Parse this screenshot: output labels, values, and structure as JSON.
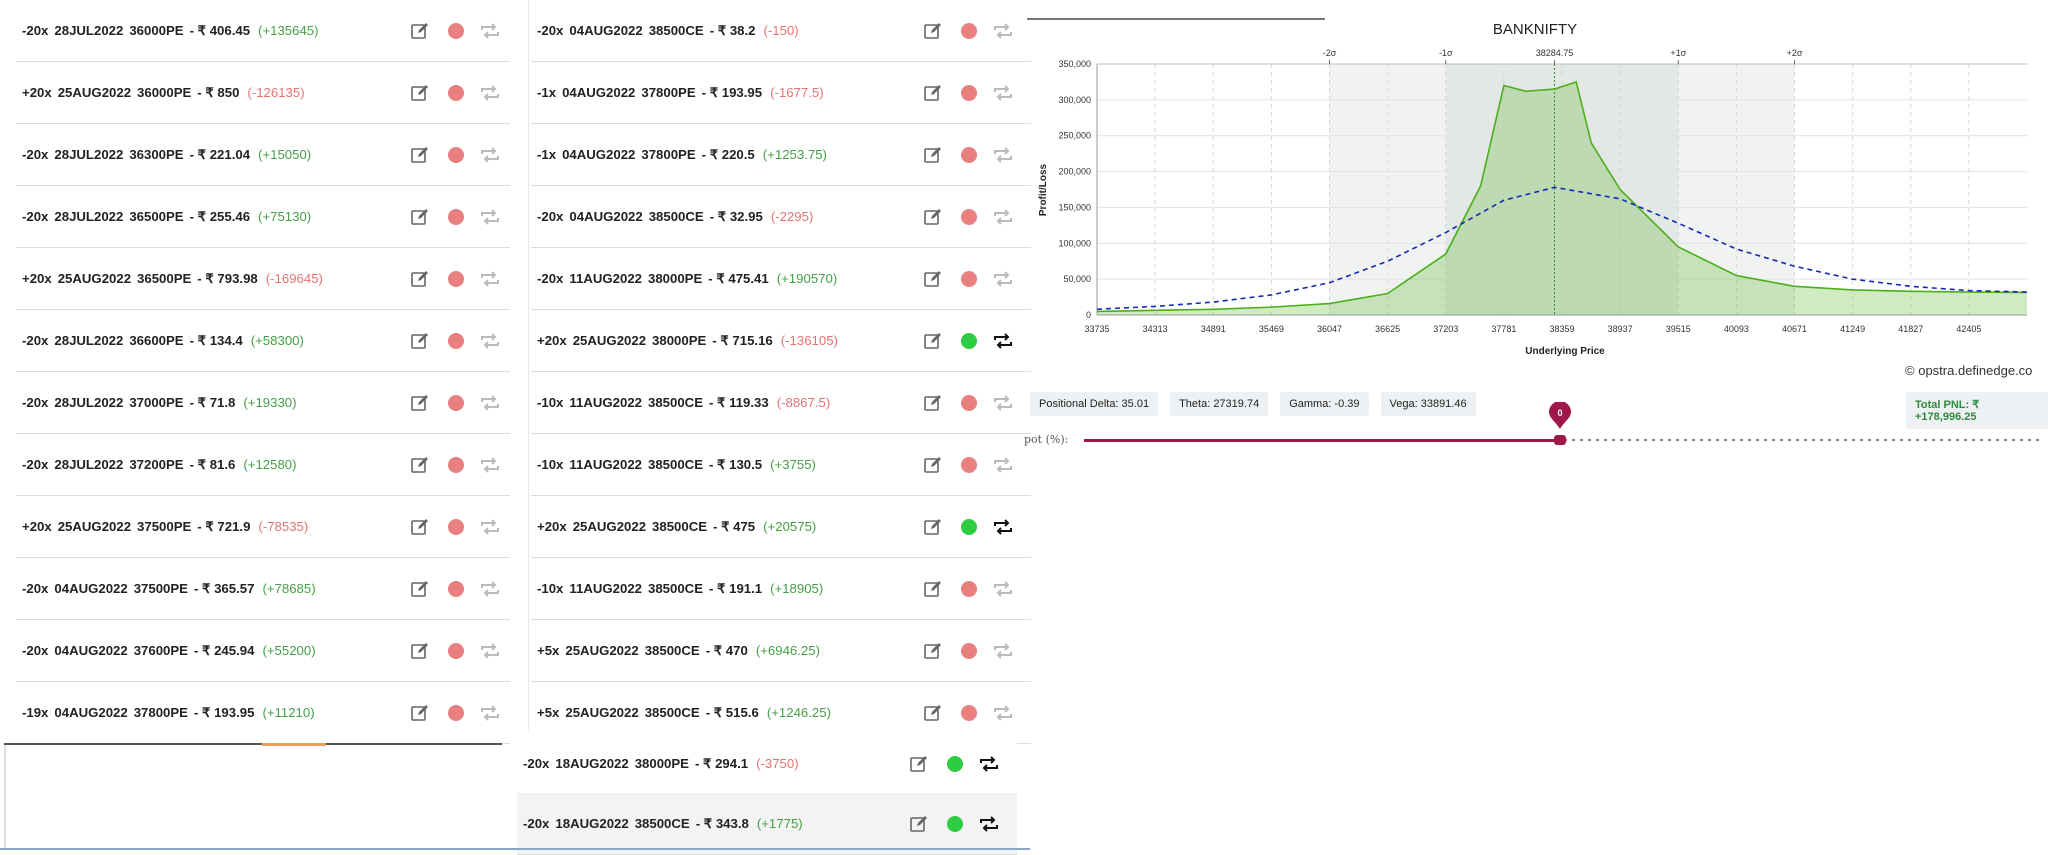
{
  "left_rows": [
    {
      "qty": "-20x",
      "expiry": "28JUL2022",
      "strike": "36000PE",
      "price": "- ₹ 406.45",
      "pnl": "(+135645)",
      "pnl_positive": true,
      "active": false
    },
    {
      "qty": "+20x",
      "expiry": "25AUG2022",
      "strike": "36000PE",
      "price": "- ₹ 850",
      "pnl": "(-126135)",
      "pnl_positive": false,
      "active": false
    },
    {
      "qty": "-20x",
      "expiry": "28JUL2022",
      "strike": "36300PE",
      "price": "- ₹ 221.04",
      "pnl": "(+15050)",
      "pnl_positive": true,
      "active": false
    },
    {
      "qty": "-20x",
      "expiry": "28JUL2022",
      "strike": "36500PE",
      "price": "- ₹ 255.46",
      "pnl": "(+75130)",
      "pnl_positive": true,
      "active": false
    },
    {
      "qty": "+20x",
      "expiry": "25AUG2022",
      "strike": "36500PE",
      "price": "- ₹ 793.98",
      "pnl": "(-169645)",
      "pnl_positive": false,
      "active": false
    },
    {
      "qty": "-20x",
      "expiry": "28JUL2022",
      "strike": "36600PE",
      "price": "- ₹ 134.4",
      "pnl": "(+58300)",
      "pnl_positive": true,
      "active": false
    },
    {
      "qty": "-20x",
      "expiry": "28JUL2022",
      "strike": "37000PE",
      "price": "- ₹ 71.8",
      "pnl": "(+19330)",
      "pnl_positive": true,
      "active": false
    },
    {
      "qty": "-20x",
      "expiry": "28JUL2022",
      "strike": "37200PE",
      "price": "- ₹ 81.6",
      "pnl": "(+12580)",
      "pnl_positive": true,
      "active": false
    },
    {
      "qty": "+20x",
      "expiry": "25AUG2022",
      "strike": "37500PE",
      "price": "- ₹ 721.9",
      "pnl": "(-78535)",
      "pnl_positive": false,
      "active": false
    },
    {
      "qty": "-20x",
      "expiry": "04AUG2022",
      "strike": "37500PE",
      "price": "- ₹ 365.57",
      "pnl": "(+78685)",
      "pnl_positive": true,
      "active": false
    },
    {
      "qty": "-20x",
      "expiry": "04AUG2022",
      "strike": "37600PE",
      "price": "- ₹ 245.94",
      "pnl": "(+55200)",
      "pnl_positive": true,
      "active": false
    },
    {
      "qty": "-19x",
      "expiry": "04AUG2022",
      "strike": "37800PE",
      "price": "- ₹ 193.95",
      "pnl": "(+11210)",
      "pnl_positive": true,
      "active": false
    }
  ],
  "mid_rows": [
    {
      "qty": "-20x",
      "expiry": "04AUG2022",
      "strike": "38500CE",
      "price": "- ₹ 38.2",
      "pnl": "(-150)",
      "pnl_positive": false,
      "active": false
    },
    {
      "qty": "-1x",
      "expiry": "04AUG2022",
      "strike": "37800PE",
      "price": "- ₹ 193.95",
      "pnl": "(-1677.5)",
      "pnl_positive": false,
      "active": false
    },
    {
      "qty": "-1x",
      "expiry": "04AUG2022",
      "strike": "37800PE",
      "price": "- ₹ 220.5",
      "pnl": "(+1253.75)",
      "pnl_positive": true,
      "active": false
    },
    {
      "qty": "-20x",
      "expiry": "04AUG2022",
      "strike": "38500CE",
      "price": "- ₹ 32.95",
      "pnl": "(-2295)",
      "pnl_positive": false,
      "active": false
    },
    {
      "qty": "-20x",
      "expiry": "11AUG2022",
      "strike": "38000PE",
      "price": "- ₹ 475.41",
      "pnl": "(+190570)",
      "pnl_positive": true,
      "active": false
    },
    {
      "qty": "+20x",
      "expiry": "25AUG2022",
      "strike": "38000PE",
      "price": "- ₹ 715.16",
      "pnl": "(-136105)",
      "pnl_positive": false,
      "active": true
    },
    {
      "qty": "-10x",
      "expiry": "11AUG2022",
      "strike": "38500CE",
      "price": "- ₹ 119.33",
      "pnl": "(-8867.5)",
      "pnl_positive": false,
      "active": false
    },
    {
      "qty": "-10x",
      "expiry": "11AUG2022",
      "strike": "38500CE",
      "price": "- ₹ 130.5",
      "pnl": "(+3755)",
      "pnl_positive": true,
      "active": false
    },
    {
      "qty": "+20x",
      "expiry": "25AUG2022",
      "strike": "38500CE",
      "price": "- ₹ 475",
      "pnl": "(+20575)",
      "pnl_positive": true,
      "active": true
    },
    {
      "qty": "-10x",
      "expiry": "11AUG2022",
      "strike": "38500CE",
      "price": "- ₹ 191.1",
      "pnl": "(+18905)",
      "pnl_positive": true,
      "active": false
    },
    {
      "qty": "+5x",
      "expiry": "25AUG2022",
      "strike": "38500CE",
      "price": "- ₹ 470",
      "pnl": "(+6946.25)",
      "pnl_positive": true,
      "active": false
    },
    {
      "qty": "+5x",
      "expiry": "25AUG2022",
      "strike": "38500CE",
      "price": "- ₹ 515.6",
      "pnl": "(+1246.25)",
      "pnl_positive": true,
      "active": false
    },
    {
      "qty": "-20x",
      "expiry": "18AUG2022",
      "strike": "38000PE",
      "price": "- ₹ 294.1",
      "pnl": "(-3750)",
      "pnl_positive": false,
      "active": true
    },
    {
      "qty": "-20x",
      "expiry": "18AUG2022",
      "strike": "38500CE",
      "price": "- ₹ 343.8",
      "pnl": "(+1775)",
      "pnl_positive": true,
      "active": true
    }
  ],
  "chart": {
    "title": "BANKNIFTY",
    "xlabel": "Underlying Price",
    "ylabel": "Profit/Loss",
    "credit": "opstra.definedge.co",
    "sigma_labels": [
      "-2σ",
      "-1σ",
      "38284.75",
      "+1σ",
      "+2σ"
    ],
    "x_ticks": [
      "33735",
      "34313",
      "34891",
      "35469",
      "36047",
      "36625",
      "37203",
      "37781",
      "38359",
      "38937",
      "39515",
      "40093",
      "40671",
      "41249",
      "41827",
      "42405"
    ],
    "y_ticks": [
      "0",
      "50,000",
      "100,000",
      "150,000",
      "200,000",
      "250,000",
      "300,000",
      "350,000"
    ]
  },
  "chart_data": {
    "type": "line",
    "title": "BANKNIFTY",
    "xlabel": "Underlying Price",
    "ylabel": "Profit/Loss",
    "xlim": [
      33735,
      42983
    ],
    "ylim": [
      0,
      350000
    ],
    "spot": 38284.75,
    "sigma": {
      "-2σ": 36047,
      "-1σ": 37203,
      "+1σ": 39515,
      "+2σ": 40671
    },
    "series": [
      {
        "color": "#4caf1a",
        "x": [
          33735,
          34313,
          34891,
          35469,
          36047,
          36625,
          37203,
          37550,
          37781,
          38000,
          38284.75,
          38500,
          38650,
          38937,
          39515,
          40093,
          40671,
          41249,
          41827,
          42405,
          42983
        ],
        "y": [
          5000,
          6500,
          8000,
          11000,
          16000,
          30000,
          85000,
          180000,
          320000,
          312000,
          315000,
          325000,
          240000,
          175000,
          95000,
          55000,
          40000,
          35000,
          33000,
          32000,
          31500
        ]
      },
      {
        "color": "#1428b4",
        "style": "dashed",
        "x": [
          33735,
          34313,
          34891,
          35469,
          36047,
          36625,
          37203,
          37781,
          38284.75,
          38937,
          39515,
          40093,
          40671,
          41249,
          41827,
          42405,
          42983
        ],
        "y": [
          8000,
          12000,
          18000,
          28000,
          45000,
          75000,
          115000,
          160000,
          178000,
          162000,
          128000,
          92000,
          68000,
          50000,
          40000,
          34000,
          32000
        ]
      }
    ]
  },
  "greeks": {
    "delta": "Positional Delta: 35.01",
    "theta": "Theta: 27319.74",
    "gamma": "Gamma: -0.39",
    "vega": "Vega: 33891.46"
  },
  "total_pnl": "Total PNL: ₹ +178,996.25",
  "spot_label": "pot (%):",
  "slider_value": "0"
}
